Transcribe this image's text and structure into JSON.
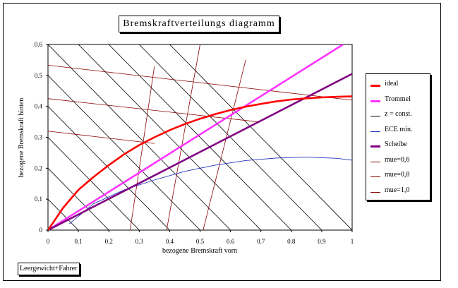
{
  "chart_data": {
    "type": "line",
    "title": "Bremskraftverteilungs diagramm",
    "xlabel": "bezogene Bremskraft vorn",
    "ylabel": "bezogene Bremskraft hinten",
    "xlim": [
      0,
      1
    ],
    "ylim": [
      0,
      0.6
    ],
    "x_ticks": [
      "0",
      "0.1",
      "0.2",
      "0.3",
      "0.4",
      "0.5",
      "0.6",
      "0.7",
      "0.8",
      "0.9",
      "1"
    ],
    "y_ticks": [
      "0",
      "0.1",
      "0.2",
      "0.3",
      "0.4",
      "0.5",
      "0.6"
    ],
    "legend_position": "right",
    "note": "Leergewicht+Fahrer",
    "series": [
      {
        "name": "ideal",
        "color": "#ff0000",
        "width": 2.6,
        "x": [
          0,
          0.05,
          0.1,
          0.15,
          0.2,
          0.25,
          0.3,
          0.35,
          0.4,
          0.45,
          0.5,
          0.55,
          0.6,
          0.65,
          0.7,
          0.75,
          0.8,
          0.85,
          0.9,
          0.95,
          1.0
        ],
        "y": [
          0,
          0.072,
          0.13,
          0.172,
          0.21,
          0.245,
          0.275,
          0.3,
          0.323,
          0.343,
          0.36,
          0.375,
          0.388,
          0.399,
          0.408,
          0.416,
          0.422,
          0.426,
          0.429,
          0.431,
          0.432
        ]
      },
      {
        "name": "Trommel",
        "color": "#ff33ff",
        "width": 2.6,
        "x": [
          0,
          0.97
        ],
        "y": [
          0,
          0.6
        ]
      },
      {
        "name": "z = const.",
        "color": "#000000",
        "width": 0.8,
        "type": "const_z"
      },
      {
        "name": "ECE min.",
        "color": "#2233bb",
        "width": 0.9,
        "x": [
          0.07,
          0.15,
          0.25,
          0.35,
          0.45,
          0.55,
          0.65,
          0.75,
          0.85,
          0.95,
          1.0
        ],
        "y": [
          0.02,
          0.085,
          0.13,
          0.162,
          0.19,
          0.21,
          0.225,
          0.233,
          0.236,
          0.232,
          0.226
        ]
      },
      {
        "name": "Scheibe",
        "color": "#800080",
        "width": 2.6,
        "x": [
          0,
          1.0
        ],
        "y": [
          0,
          0.505
        ]
      },
      {
        "name": "mue=0,6",
        "color": "#8b0000",
        "width": 0.8,
        "type": "mue"
      },
      {
        "name": "mue=0,8",
        "color": "#8b0000",
        "width": 0.8,
        "type": "mue"
      },
      {
        "name": "mue=1,0",
        "color": "#8b0000",
        "width": 0.8,
        "type": "mue"
      }
    ],
    "const_z_lines": [
      0.1,
      0.2,
      0.3,
      0.4,
      0.5,
      0.6,
      0.7,
      0.8,
      0.9,
      1.0
    ],
    "mue_lines_lower": [
      {
        "x": [
          0,
          0.35
        ],
        "y": [
          0.32,
          0.28
        ]
      },
      {
        "x": [
          0,
          0.69
        ],
        "y": [
          0.425,
          0.35
        ]
      },
      {
        "x": [
          0,
          1.0
        ],
        "y": [
          0.533,
          0.42
        ]
      }
    ],
    "mue_lines_upper": [
      {
        "x": [
          0.27,
          0.35
        ],
        "y": [
          0,
          0.53
        ]
      },
      {
        "x": [
          0.39,
          0.5
        ],
        "y": [
          0,
          0.6
        ]
      },
      {
        "x": [
          0.51,
          0.65
        ],
        "y": [
          0,
          0.55
        ]
      }
    ]
  }
}
